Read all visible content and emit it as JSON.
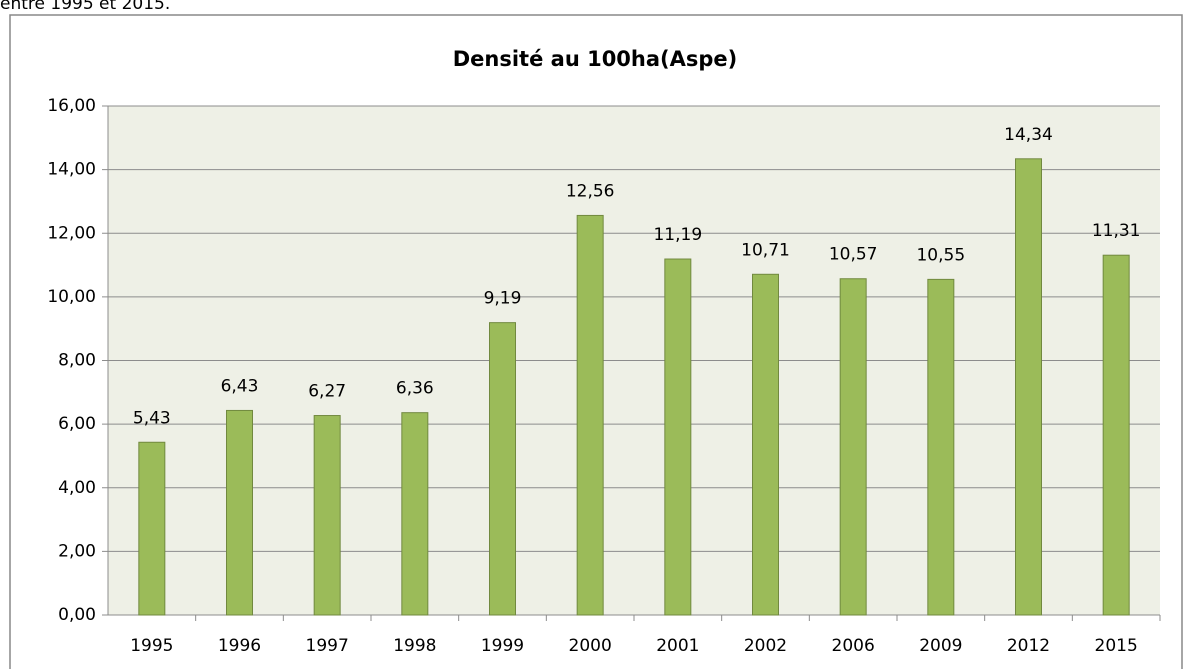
{
  "caption": "entre 1995 et 2015.",
  "chart_data": {
    "type": "bar",
    "title": "Densité au 100ha(Aspe)",
    "categories": [
      "1995",
      "1996",
      "1997",
      "1998",
      "1999",
      "2000",
      "2001",
      "2002",
      "2006",
      "2009",
      "2012",
      "2015"
    ],
    "values": [
      5.43,
      6.43,
      6.27,
      6.36,
      9.19,
      12.56,
      11.19,
      10.71,
      10.57,
      10.55,
      14.34,
      11.31
    ],
    "value_labels": [
      "5,43",
      "6,43",
      "6,27",
      "6,36",
      "9,19",
      "12,56",
      "11,19",
      "10,71",
      "10,57",
      "10,55",
      "14,34",
      "11,31"
    ],
    "color": "#9bbb59",
    "ylim": [
      0,
      16
    ],
    "yticks": [
      {
        "value": 0,
        "label": "0,00"
      },
      {
        "value": 2,
        "label": "2,00"
      },
      {
        "value": 4,
        "label": "4,00"
      },
      {
        "value": 6,
        "label": "6,00"
      },
      {
        "value": 8,
        "label": "8,00"
      },
      {
        "value": 10,
        "label": "10,00"
      },
      {
        "value": 12,
        "label": "12,00"
      },
      {
        "value": 14,
        "label": "14,00"
      },
      {
        "value": 16,
        "label": "16,00"
      }
    ],
    "grid": true
  }
}
